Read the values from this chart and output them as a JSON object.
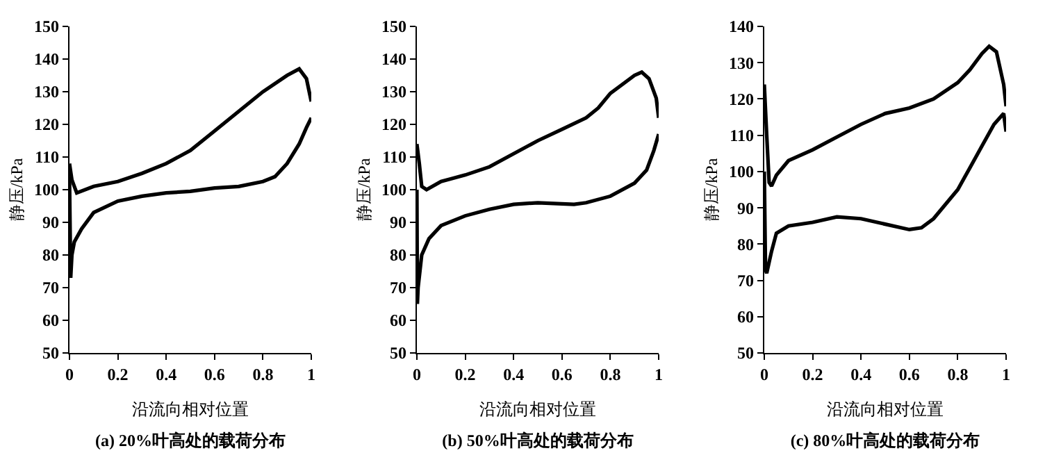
{
  "chart_data": [
    {
      "type": "line",
      "title": "(a) 20%叶高处的载荷分布",
      "xlabel": "沿流向相对位置",
      "ylabel": "静压/kPa",
      "xlim": [
        0,
        1
      ],
      "ylim": [
        50,
        150
      ],
      "xticks": [
        0,
        0.2,
        0.4,
        0.6,
        0.8,
        1
      ],
      "yticks": [
        50,
        60,
        70,
        80,
        90,
        100,
        110,
        120,
        130,
        140,
        150
      ],
      "grid": false,
      "marker": "none",
      "line_style": "solid",
      "series": [
        {
          "color": "#000000",
          "x": [
            0,
            0.01,
            0.03,
            0.1,
            0.2,
            0.3,
            0.4,
            0.5,
            0.6,
            0.7,
            0.8,
            0.9,
            0.95,
            0.98,
            1.0
          ],
          "values": [
            108,
            103,
            99,
            101,
            102.5,
            105,
            108,
            112,
            118,
            124,
            130,
            135,
            137,
            134,
            127
          ]
        },
        {
          "color": "#000000",
          "x": [
            0,
            0.005,
            0.01,
            0.02,
            0.05,
            0.1,
            0.2,
            0.3,
            0.4,
            0.5,
            0.6,
            0.7,
            0.8,
            0.85,
            0.9,
            0.95,
            0.98,
            1.0
          ],
          "values": [
            104,
            73,
            80,
            84,
            88,
            93,
            96.5,
            98,
            99,
            99.5,
            100.5,
            101,
            102.5,
            104,
            108,
            114,
            119,
            122
          ]
        }
      ]
    },
    {
      "type": "line",
      "title": "(b) 50%叶高处的载荷分布",
      "xlabel": "沿流向相对位置",
      "ylabel": "静压/kPa",
      "xlim": [
        0,
        1
      ],
      "ylim": [
        50,
        150
      ],
      "xticks": [
        0,
        0.2,
        0.4,
        0.6,
        0.8,
        1
      ],
      "yticks": [
        50,
        60,
        70,
        80,
        90,
        100,
        110,
        120,
        130,
        140,
        150
      ],
      "grid": false,
      "marker": "none",
      "line_style": "solid",
      "series": [
        {
          "color": "#000000",
          "x": [
            0,
            0.01,
            0.02,
            0.04,
            0.1,
            0.2,
            0.3,
            0.4,
            0.5,
            0.6,
            0.7,
            0.75,
            0.8,
            0.9,
            0.93,
            0.96,
            0.99,
            1.0
          ],
          "values": [
            114,
            108,
            101,
            100,
            102.5,
            104.5,
            107,
            111,
            115,
            118.5,
            122,
            125,
            129.5,
            135,
            136,
            134,
            128,
            122
          ]
        },
        {
          "color": "#000000",
          "x": [
            0,
            0.002,
            0.005,
            0.02,
            0.05,
            0.1,
            0.2,
            0.3,
            0.4,
            0.5,
            0.65,
            0.7,
            0.8,
            0.9,
            0.95,
            0.98,
            1.0
          ],
          "values": [
            100,
            65,
            70,
            80,
            85,
            89,
            92,
            94,
            95.5,
            96,
            95.5,
            96,
            98,
            102,
            106,
            112,
            117
          ]
        }
      ]
    },
    {
      "type": "line",
      "title": "(c) 80%叶高处的载荷分布",
      "xlabel": "沿流向相对位置",
      "ylabel": "静压/kPa",
      "xlim": [
        0,
        1
      ],
      "ylim": [
        50,
        140
      ],
      "xticks": [
        0,
        0.2,
        0.4,
        0.6,
        0.8,
        1
      ],
      "yticks": [
        50,
        60,
        70,
        80,
        90,
        100,
        110,
        120,
        130,
        140
      ],
      "grid": false,
      "marker": "none",
      "line_style": "solid",
      "series": [
        {
          "color": "#000000",
          "x": [
            0,
            0.01,
            0.02,
            0.03,
            0.05,
            0.1,
            0.2,
            0.3,
            0.4,
            0.5,
            0.6,
            0.7,
            0.8,
            0.85,
            0.9,
            0.93,
            0.96,
            0.99,
            1.0
          ],
          "values": [
            124,
            110,
            97,
            96,
            99,
            103,
            106,
            109.5,
            113,
            116,
            117.5,
            120,
            124.5,
            128,
            132.5,
            134.5,
            133,
            124,
            118
          ]
        },
        {
          "color": "#000000",
          "x": [
            0,
            0.005,
            0.01,
            0.03,
            0.05,
            0.1,
            0.2,
            0.3,
            0.4,
            0.5,
            0.6,
            0.65,
            0.7,
            0.8,
            0.85,
            0.9,
            0.95,
            0.99,
            1.0
          ],
          "values": [
            100,
            73,
            72,
            78,
            83,
            85,
            86,
            87.5,
            87,
            85.5,
            84,
            84.5,
            87,
            95,
            101,
            107,
            113,
            116,
            111
          ]
        }
      ]
    }
  ]
}
